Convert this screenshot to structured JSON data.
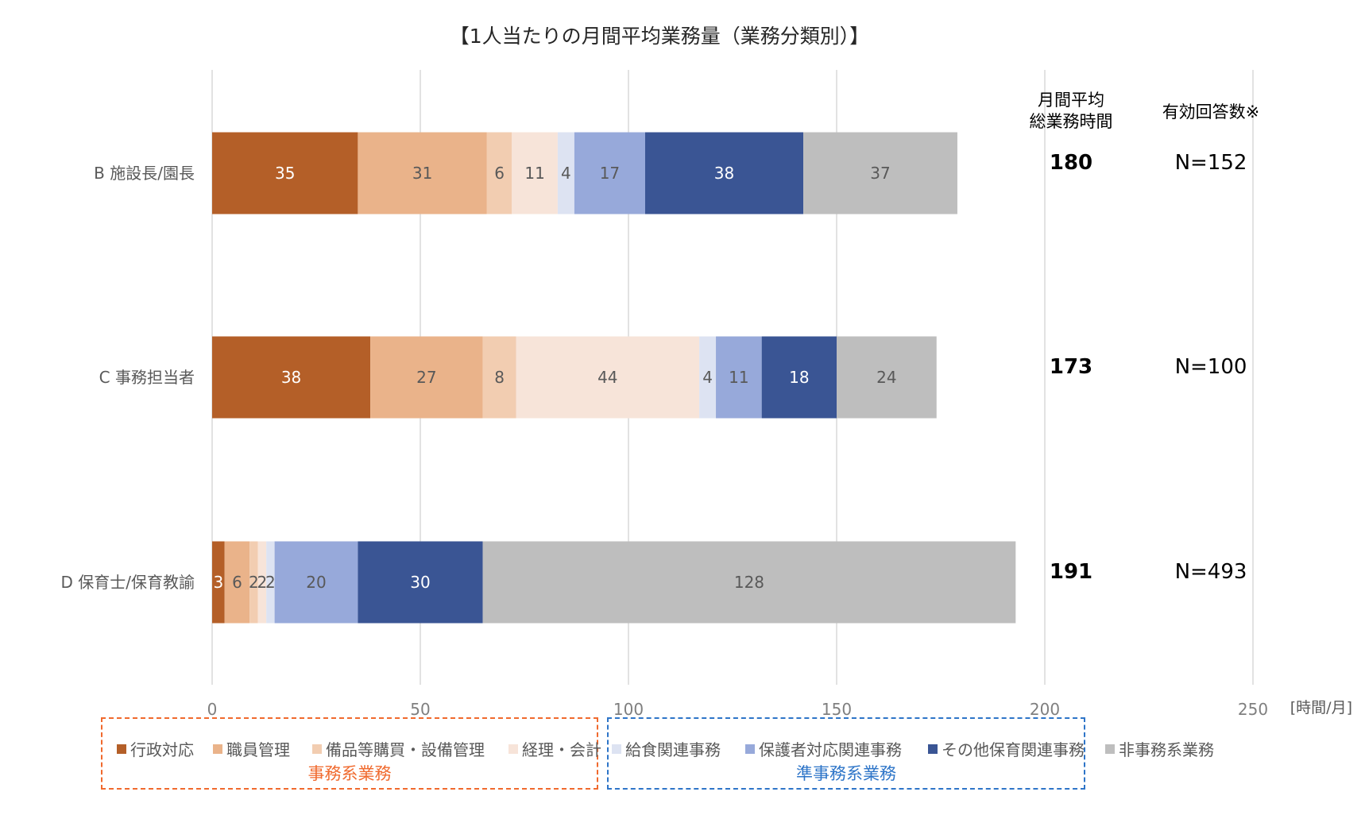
{
  "chart_data": {
    "type": "bar",
    "orientation": "horizontal",
    "stacked": true,
    "title": "【1人当たりの月間平均業務量（業務分類別）】",
    "categories": [
      "B 施設長/園長",
      "C 事務担当者",
      "D 保育士/保育教諭"
    ],
    "series": [
      {
        "name": "行政対応",
        "color": "#B45F28",
        "values": [
          35,
          38,
          3
        ]
      },
      {
        "name": "職員管理",
        "color": "#EAB38A",
        "values": [
          31,
          27,
          6
        ]
      },
      {
        "name": "備品等購買・設備管理",
        "color": "#F2CDB1",
        "values": [
          6,
          8,
          2
        ]
      },
      {
        "name": "経理・会計",
        "color": "#F7E4D9",
        "values": [
          11,
          44,
          2
        ]
      },
      {
        "name": "給食関連事務",
        "color": "#DDE3F2",
        "values": [
          4,
          4,
          2
        ]
      },
      {
        "name": "保護者対応関連事務",
        "color": "#97A9DA",
        "values": [
          17,
          11,
          20
        ]
      },
      {
        "name": "その他保育関連事務",
        "color": "#3A5594",
        "values": [
          38,
          18,
          30
        ]
      },
      {
        "name": "非事務系業務",
        "color": "#BEBEBE",
        "values": [
          37,
          24,
          128
        ]
      }
    ],
    "xlim": [
      0,
      250
    ],
    "xticks": [
      0,
      50,
      100,
      150,
      200,
      250
    ],
    "xunit": "[時間/月]",
    "grid": true,
    "extra_columns": [
      {
        "header": [
          "月間平均",
          "総業務時間"
        ],
        "values": [
          "180",
          "173",
          "191"
        ]
      },
      {
        "header": [
          "有効回答数※"
        ],
        "values": [
          "N=152",
          "N=100",
          "N=493"
        ]
      }
    ],
    "legend_groups": [
      {
        "label": "事務系業務",
        "color": "#F06A2E",
        "series_count": 4
      },
      {
        "label": "準事務系業務",
        "color": "#2E75C8",
        "series_count": 3
      }
    ],
    "legend_position": "bottom"
  }
}
